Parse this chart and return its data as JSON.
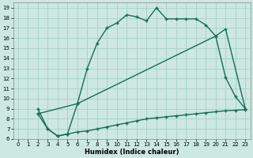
{
  "xlabel": "Humidex (Indice chaleur)",
  "bg_color": "#cce8e0",
  "grid_color": "#aad4cc",
  "line_color": "#1a6b5a",
  "xlim": [
    -0.5,
    23.5
  ],
  "ylim": [
    6,
    19.5
  ],
  "xticks": [
    0,
    1,
    2,
    3,
    4,
    5,
    6,
    7,
    8,
    9,
    10,
    11,
    12,
    13,
    14,
    15,
    16,
    17,
    18,
    19,
    20,
    21,
    22,
    23
  ],
  "yticks": [
    6,
    7,
    8,
    9,
    10,
    11,
    12,
    13,
    14,
    15,
    16,
    17,
    18,
    19
  ],
  "line1_x": [
    2,
    3,
    4,
    5,
    6,
    7,
    8,
    9,
    10,
    11,
    12,
    13,
    14,
    15,
    16,
    17,
    18,
    19,
    20,
    21,
    22,
    23
  ],
  "line1_y": [
    9,
    7,
    6.3,
    6.5,
    9.5,
    13,
    15.5,
    17,
    17.5,
    18.3,
    18.1,
    17.7,
    19,
    17.9,
    17.9,
    17.9,
    17.9,
    17.3,
    16.2,
    12.1,
    10.2,
    9.0
  ],
  "line2_x": [
    2,
    6,
    20,
    21,
    23
  ],
  "line2_y": [
    8.5,
    9.5,
    16.2,
    16.9,
    9.0
  ],
  "line3_x": [
    2,
    3,
    4,
    5,
    6,
    7,
    8,
    9,
    10,
    11,
    12,
    13,
    14,
    15,
    16,
    17,
    18,
    19,
    20,
    21,
    22,
    23
  ],
  "line3_y": [
    8.5,
    7.0,
    6.3,
    6.5,
    6.7,
    6.8,
    7.0,
    7.2,
    7.4,
    7.6,
    7.8,
    8.0,
    8.1,
    8.2,
    8.3,
    8.4,
    8.5,
    8.6,
    8.7,
    8.8,
    8.85,
    8.9
  ]
}
